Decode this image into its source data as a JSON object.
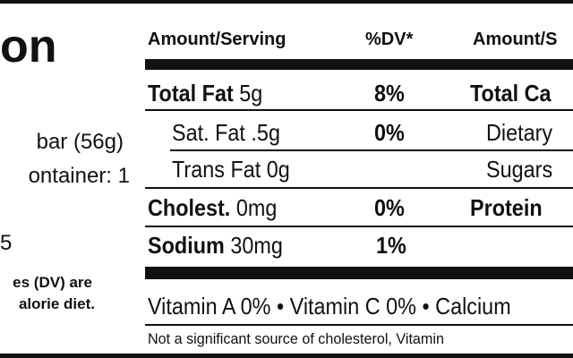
{
  "left": {
    "title": "on",
    "serving": "bar (56g)",
    "servings_per_container": "ontainer: 1",
    "calories": "5",
    "footnote": [
      "es (DV) are",
      "alorie diet."
    ]
  },
  "table": {
    "header": [
      "Amount/Serving",
      "%DV*",
      "Amount/S"
    ],
    "rows": [
      {
        "nutrient": "Total Fat",
        "amount": "5g",
        "dv": "8%",
        "right": "Total Ca"
      },
      {
        "nutrient": "Sat. Fat .5g",
        "dv": "0%",
        "right": "Dietary"
      },
      {
        "nutrient": "Trans Fat 0g",
        "right": "Sugars"
      },
      {
        "nutrient": "Cholest.",
        "amount": "0mg",
        "dv": "0%",
        "right": "Protein"
      },
      {
        "nutrient": "Sodium",
        "amount": "30mg",
        "dv": "1%"
      }
    ]
  },
  "vitamins": "Vitamin A 0% • Vitamin C 0% • Calcium",
  "note": "Not a significant source of cholesterol, Vitamin"
}
